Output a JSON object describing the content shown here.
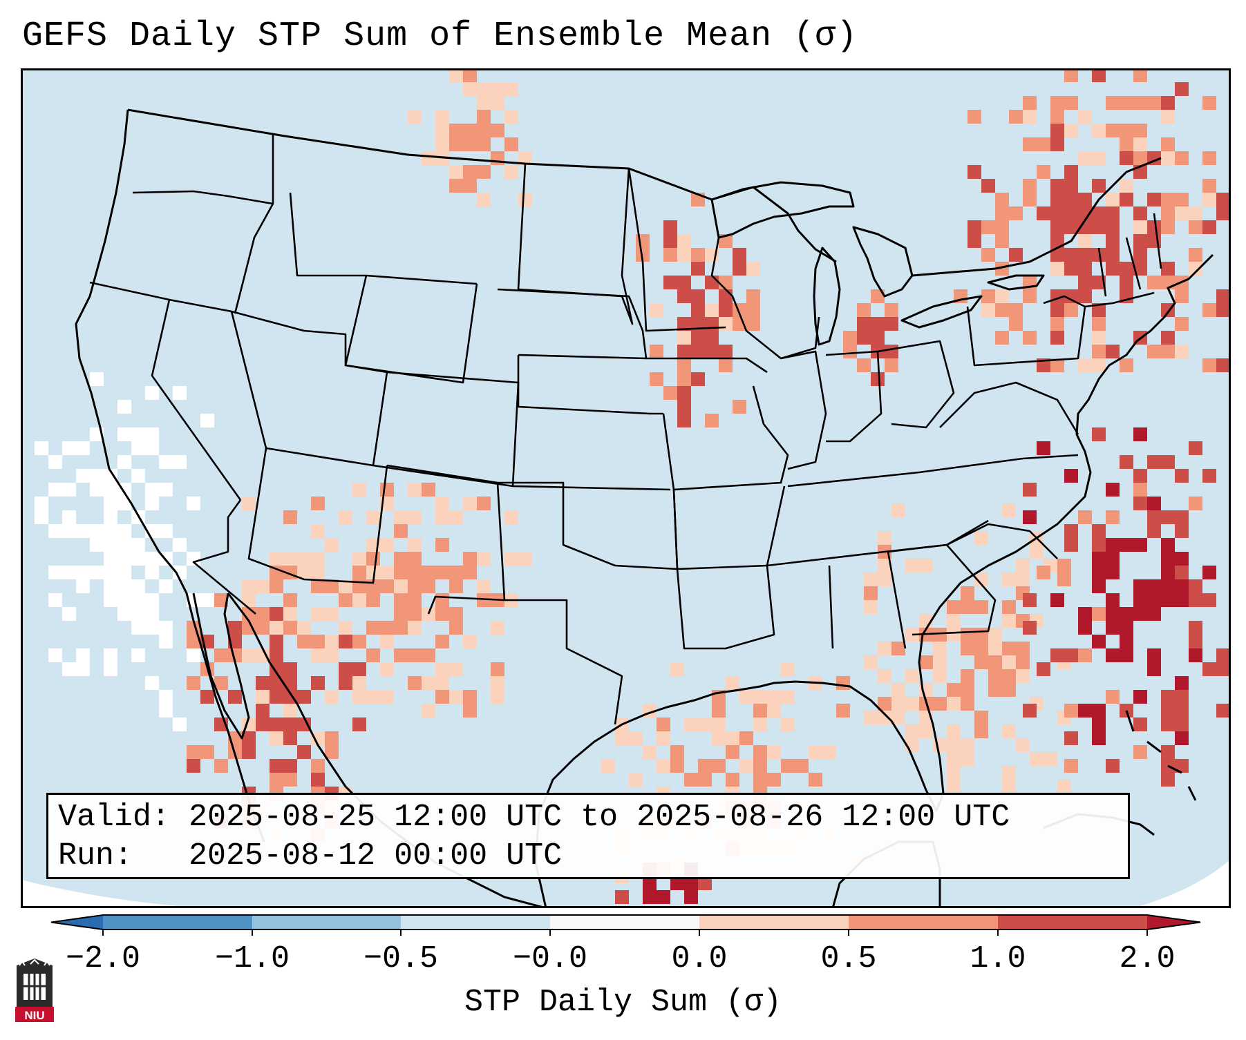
{
  "title": "GEFS Daily STP Sum of Ensemble Mean (σ)",
  "info": {
    "valid_label": "Valid:",
    "valid_value": "2025-08-25 12:00 UTC to 2025-08-26 12:00 UTC",
    "run_label": "Run:",
    "run_value": "2025-08-12 00:00 UTC"
  },
  "colorbar": {
    "label": "STP Daily Sum (σ)",
    "ticks": [
      "−2.0",
      "−1.0",
      "−0.5",
      "−0.0",
      "0.0",
      "0.5",
      "1.0",
      "2.0"
    ],
    "bin_colors": [
      "#4f93c4",
      "#93c3df",
      "#d1e5f0",
      "#f7f7f7",
      "#fbd3bc",
      "#f2967a",
      "#cd4d49"
    ],
    "extend_low_color": "#2a6cb0",
    "extend_high_color": "#b2182b"
  },
  "map": {
    "background_color": "#d1e5f0",
    "feature_color": "#000000",
    "anomaly_regions": [
      {
        "name": "Northern Plains",
        "level": 0.5
      },
      {
        "name": "Upper Midwest",
        "level": 1.0
      },
      {
        "name": "Great Lakes",
        "level": 1.0
      },
      {
        "name": "Northeast",
        "level": 1.0
      },
      {
        "name": "Southeast Coast",
        "level": 0.5
      },
      {
        "name": "Western Atlantic",
        "level": 2.0
      },
      {
        "name": "Gulf of Mexico",
        "level": 0.5
      },
      {
        "name": "Southern Mexico",
        "level": 2.0
      },
      {
        "name": "Baja California",
        "level": 1.0
      },
      {
        "name": "Four Corners",
        "level": 0.5
      },
      {
        "name": "Pacific Coast",
        "level": 0.0
      }
    ]
  },
  "logo": {
    "text": "NIU"
  }
}
